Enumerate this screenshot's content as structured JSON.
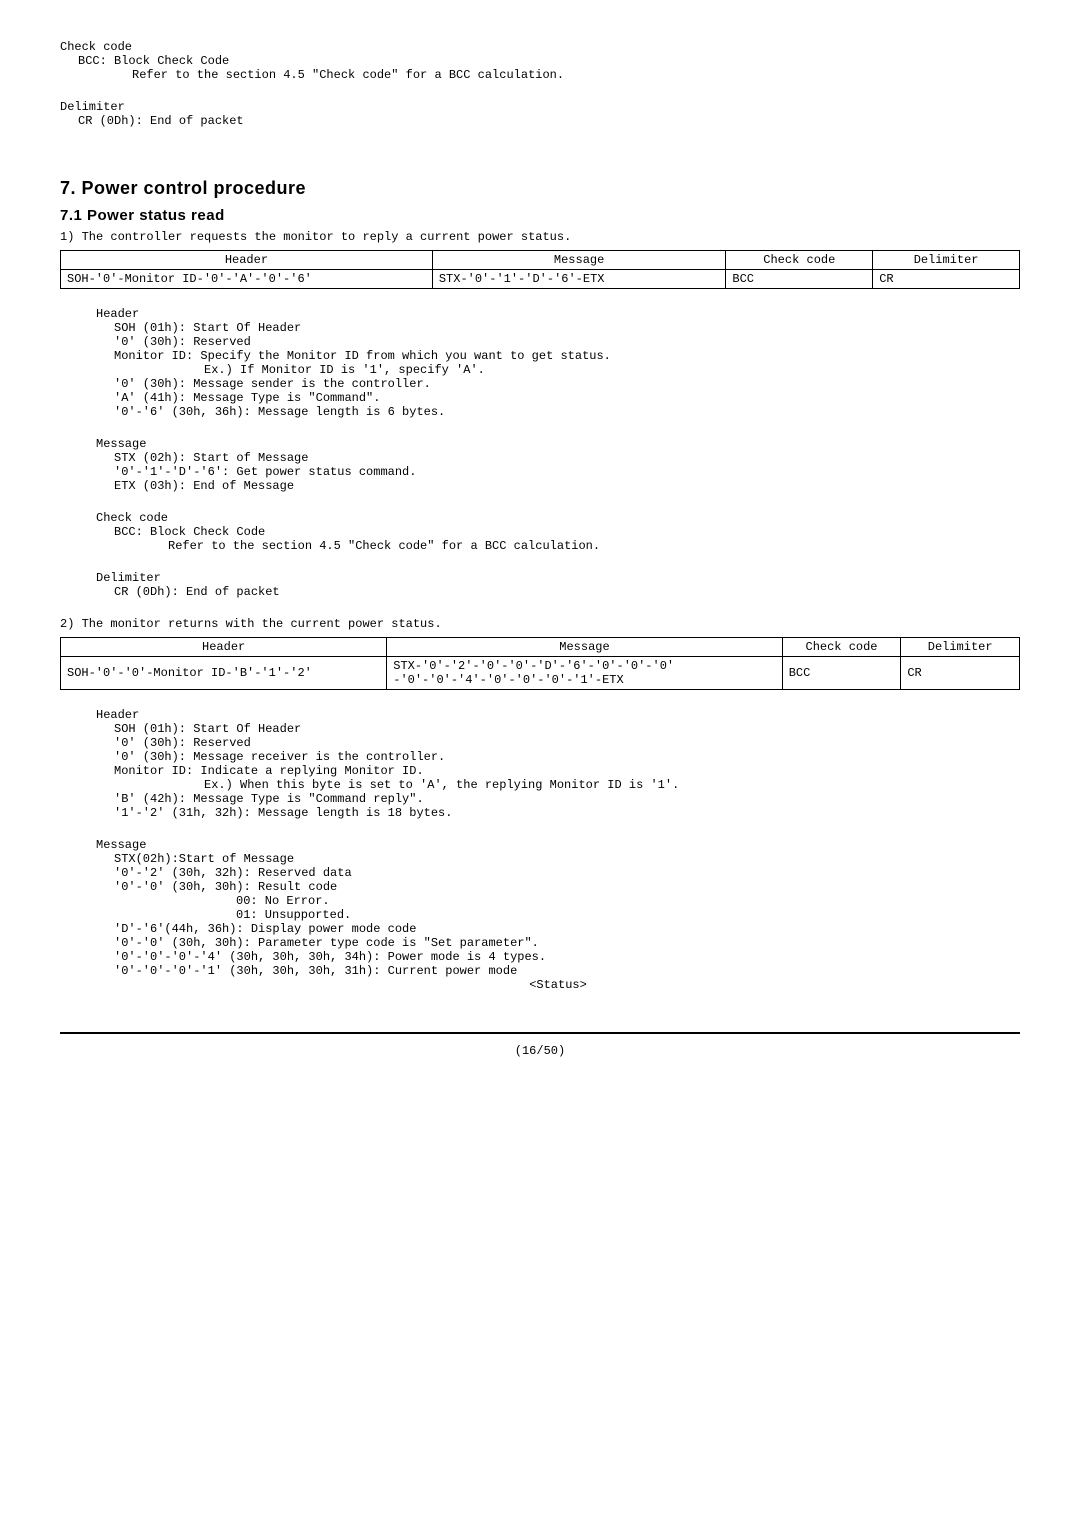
{
  "top": {
    "checkcode_label": "Check code",
    "bcc_label": "BCC: Block Check Code",
    "bcc_refer": "Refer to the section 4.5 \"Check code\" for a BCC calculation.",
    "delimiter_label": "Delimiter",
    "delimiter_cr": "CR (0Dh): End of packet"
  },
  "section7": {
    "title": "7. Power control procedure",
    "sub1": {
      "title": "7.1 Power status read",
      "step1": "1) The controller requests the monitor to reply a current power status.",
      "step2": "2) The monitor returns with the current power status."
    }
  },
  "table1": {
    "columns": [
      "Header",
      "Message",
      "Check code",
      "Delimiter"
    ],
    "row": [
      "SOH-'0'-Monitor ID-'0'-'A'-'0'-'6'",
      "STX-'0'-'1'-'D'-'6'-ETX",
      "BCC",
      "CR"
    ]
  },
  "header1": {
    "label": "Header",
    "soh": "SOH (01h): Start Of Header",
    "reserved": "'0' (30h): Reserved",
    "monitor_id": "Monitor ID: Specify the Monitor ID from which you want to get status.",
    "monitor_ex": "Ex.) If Monitor ID is '1', specify 'A'.",
    "sender": "'0' (30h): Message sender is the controller.",
    "msgtype": "'A' (41h): Message Type is \"Command\".",
    "msglen": "'0'-'6' (30h, 36h): Message length is 6 bytes."
  },
  "message1": {
    "label": "Message",
    "stx": "STX (02h): Start of Message",
    "cmd": "'0'-'1'-'D'-'6': Get power status command.",
    "etx": "ETX (03h): End of Message"
  },
  "check1": {
    "label": "Check code",
    "bcc": "BCC: Block Check Code",
    "refer": "Refer to the section 4.5 \"Check code\" for a BCC calculation."
  },
  "delim1": {
    "label": "Delimiter",
    "cr": "CR (0Dh): End of packet"
  },
  "table2": {
    "columns": [
      "Header",
      "Message",
      "Check code",
      "Delimiter"
    ],
    "row": {
      "c1": "SOH-'0'-'0'-Monitor ID-'B'-'1'-'2'",
      "c2a": "STX-'0'-'2'-'0'-'0'-'D'-'6'-'0'-'0'-'0'",
      "c2b": "-'0'-'0'-'4'-'0'-'0'-'0'-'1'-ETX",
      "c3": "BCC",
      "c4": "CR"
    }
  },
  "header2": {
    "label": "Header",
    "soh": "SOH (01h): Start Of Header",
    "reserved": "'0' (30h): Reserved",
    "receiver": "'0' (30h): Message receiver is the controller.",
    "monitor_id": "Monitor ID: Indicate a replying Monitor ID.",
    "monitor_ex": "Ex.)  When this byte is set to 'A', the replying Monitor ID is '1'.",
    "msgtype": "'B' (42h): Message Type is \"Command reply\".",
    "msglen": "'1'-'2' (31h, 32h): Message length is 18 bytes."
  },
  "message2": {
    "label": "Message",
    "stx": "STX(02h):Start of Message",
    "reserved": "'0'-'2' (30h, 32h): Reserved data",
    "result": "'0'-'0' (30h, 30h): Result code",
    "r00": "00: No Error.",
    "r01": "01: Unsupported.",
    "dpmc": "'D'-'6'(44h, 36h): Display power mode code",
    "ptype": "'0'-'0' (30h, 30h): Parameter type code is \"Set parameter\".",
    "pmode4": "'0'-'0'-'0'-'4' (30h, 30h, 30h, 34h): Power mode is 4 types.",
    "cur": "'0'-'0'-'0'-'1' (30h, 30h, 30h, 31h): Current power mode",
    "status": "<Status>"
  },
  "footer": {
    "page": "(16/50)"
  }
}
